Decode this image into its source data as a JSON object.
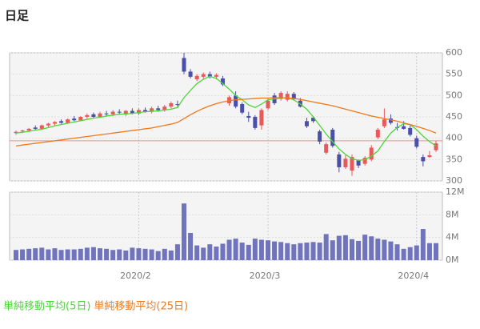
{
  "chart_data": [
    {
      "type": "candlestick",
      "title": "日足",
      "categories": [
        null,
        null,
        null,
        null,
        null,
        null,
        null,
        null,
        null,
        null,
        null,
        null,
        null,
        null,
        null,
        null,
        null,
        null,
        null,
        "2020/2",
        null,
        null,
        null,
        null,
        null,
        null,
        null,
        null,
        null,
        null,
        null,
        null,
        null,
        null,
        null,
        null,
        null,
        null,
        null,
        "2020/3",
        null,
        null,
        null,
        null,
        null,
        null,
        null,
        null,
        null,
        null,
        null,
        null,
        null,
        null,
        null,
        null,
        null,
        null,
        null,
        null,
        null,
        null,
        "2020/4",
        null,
        null,
        null
      ],
      "open": [
        412,
        416,
        418,
        425,
        422,
        430,
        434,
        440,
        436,
        446,
        442,
        450,
        456,
        450,
        458,
        456,
        462,
        456,
        464,
        458,
        466,
        462,
        470,
        466,
        474,
        480,
        588,
        556,
        538,
        544,
        550,
        544,
        540,
        482,
        500,
        480,
        452,
        450,
        430,
        470,
        500,
        492,
        490,
        504,
        488,
        440,
        448,
        416,
        366,
        420,
        362,
        332,
        324,
        348,
        340,
        350,
        402,
        428,
        446,
        426,
        428,
        424,
        400,
        356,
        356,
        372
      ],
      "high": [
        418,
        420,
        424,
        430,
        432,
        436,
        440,
        444,
        446,
        452,
        452,
        458,
        460,
        462,
        464,
        466,
        468,
        466,
        470,
        470,
        472,
        474,
        476,
        478,
        486,
        488,
        600,
        562,
        550,
        554,
        556,
        552,
        546,
        500,
        510,
        484,
        462,
        454,
        470,
        494,
        506,
        510,
        510,
        508,
        494,
        448,
        452,
        420,
        390,
        424,
        368,
        360,
        362,
        350,
        358,
        384,
        424,
        470,
        456,
        436,
        440,
        430,
        406,
        362,
        370,
        394
      ],
      "low": [
        408,
        412,
        415,
        420,
        420,
        426,
        430,
        434,
        434,
        440,
        440,
        446,
        448,
        448,
        452,
        452,
        456,
        452,
        456,
        454,
        460,
        458,
        462,
        462,
        470,
        474,
        550,
        540,
        534,
        538,
        540,
        538,
        522,
        476,
        470,
        456,
        438,
        420,
        420,
        466,
        478,
        488,
        486,
        488,
        472,
        424,
        436,
        386,
        362,
        378,
        320,
        328,
        312,
        330,
        336,
        346,
        398,
        424,
        432,
        418,
        420,
        404,
        376,
        334,
        354,
        368
      ],
      "close": [
        415,
        418,
        422,
        422,
        430,
        434,
        438,
        436,
        444,
        442,
        450,
        454,
        450,
        458,
        456,
        462,
        460,
        464,
        458,
        466,
        462,
        470,
        466,
        474,
        482,
        478,
        556,
        544,
        546,
        550,
        544,
        548,
        526,
        496,
        474,
        460,
        448,
        424,
        466,
        488,
        482,
        506,
        504,
        492,
        474,
        428,
        440,
        392,
        386,
        382,
        332,
        352,
        356,
        336,
        354,
        378,
        420,
        444,
        436,
        424,
        422,
        408,
        380,
        346,
        360,
        388
      ],
      "up_color": "#e8595a",
      "down_color": "#4a4fa8",
      "series": [
        {
          "name": "単純移動平均(5日)",
          "color": "#4cd63a",
          "values": [
            412,
            414,
            416,
            419,
            421,
            425,
            429,
            432,
            435,
            438,
            441,
            444,
            447,
            449,
            452,
            454,
            456,
            457,
            458,
            460,
            462,
            463,
            464,
            466,
            468,
            472,
            495,
            512,
            528,
            538,
            545,
            540,
            528,
            515,
            500,
            490,
            478,
            472,
            480,
            490,
            492,
            494,
            495,
            490,
            480,
            468,
            450,
            430,
            410,
            392,
            375,
            362,
            352,
            348,
            350,
            358,
            370,
            392,
            412,
            425,
            434,
            432,
            420,
            405,
            392,
            382
          ]
        },
        {
          "name": "単純移動平均(25日)",
          "color": "#f07818",
          "values": [
            382,
            384,
            386,
            388,
            390,
            392,
            394,
            396,
            398,
            400,
            402,
            404,
            406,
            408,
            410,
            412,
            414,
            416,
            418,
            420,
            422,
            424,
            427,
            430,
            433,
            437,
            446,
            455,
            463,
            470,
            476,
            481,
            485,
            488,
            490,
            491,
            492,
            493,
            494,
            494,
            495,
            495,
            494,
            493,
            491,
            488,
            485,
            482,
            479,
            476,
            472,
            468,
            464,
            460,
            456,
            452,
            449,
            446,
            443,
            440,
            436,
            432,
            428,
            423,
            418,
            412
          ]
        }
      ],
      "hline": {
        "value": 394,
        "color": "#f09090"
      },
      "ylim": [
        300,
        600
      ],
      "yticks": [
        300,
        350,
        400,
        450,
        500,
        550,
        600
      ],
      "grid": true,
      "legend": "bottom-left"
    },
    {
      "type": "bar",
      "color": "#7074bc",
      "values": [
        1800000,
        1900000,
        2000000,
        2100000,
        2200000,
        1900000,
        2100000,
        1800000,
        1900000,
        1900000,
        2000000,
        2200000,
        2300000,
        2100000,
        2000000,
        1800000,
        1900000,
        1700000,
        2200000,
        2100000,
        2000000,
        1900000,
        1600000,
        2000000,
        1700000,
        2800000,
        10000000,
        4800000,
        2600000,
        2200000,
        2800000,
        2400000,
        2900000,
        3600000,
        3800000,
        3100000,
        2700000,
        3800000,
        3600000,
        3500000,
        3300000,
        3200000,
        3000000,
        2800000,
        3000000,
        3100000,
        3200000,
        3100000,
        4600000,
        3500000,
        4300000,
        4400000,
        3700000,
        3400000,
        4500000,
        4200000,
        3800000,
        3600000,
        3300000,
        2800000,
        2000000,
        2300000,
        2600000,
        5500000,
        3000000,
        3000000
      ],
      "ylim": [
        0,
        12000000
      ],
      "yticks": [
        {
          "value": 0,
          "label": "0M"
        },
        {
          "value": 4000000,
          "label": "4M"
        },
        {
          "value": 8000000,
          "label": "8M"
        },
        {
          "value": 12000000,
          "label": "12M"
        }
      ],
      "grid": true
    }
  ]
}
